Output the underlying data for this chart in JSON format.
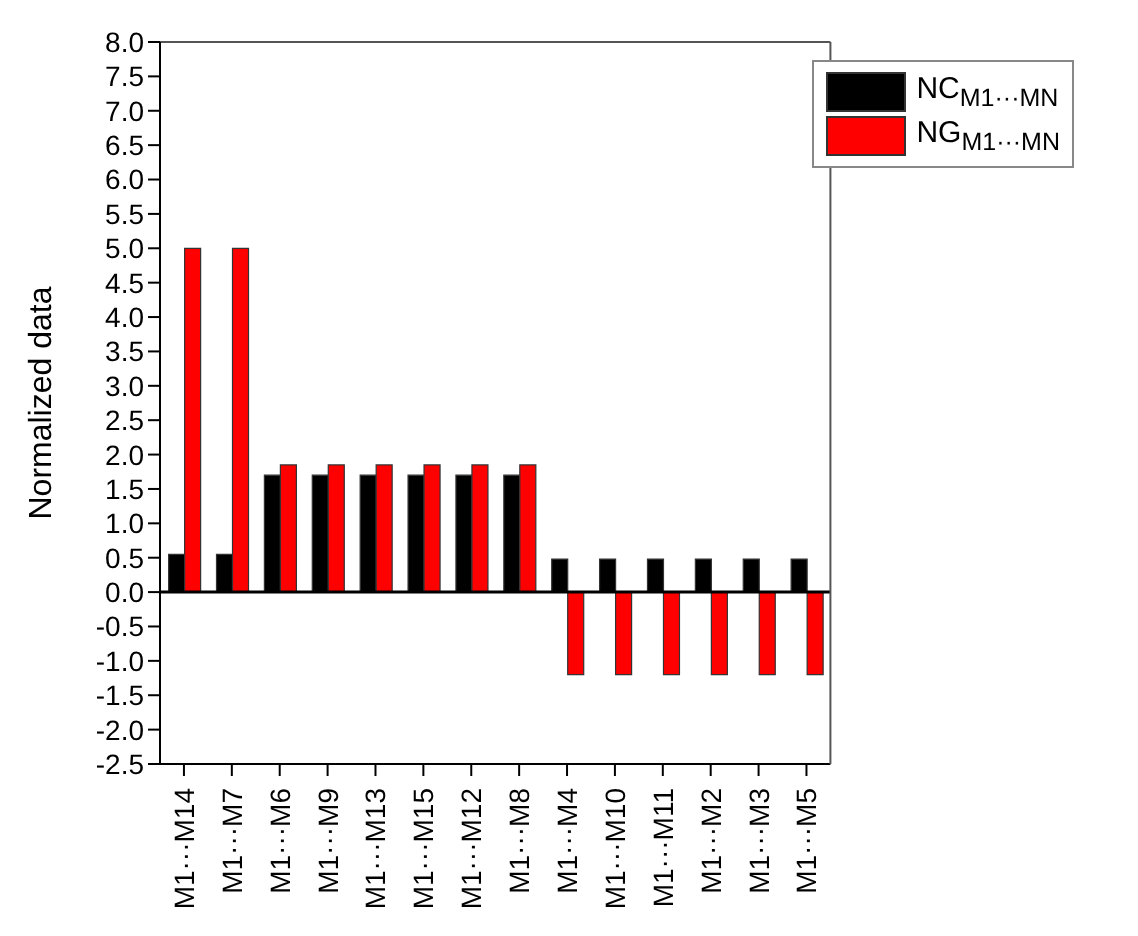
{
  "chart_data": {
    "type": "bar",
    "ylabel": "Normalized data",
    "categories": [
      "M1···M14",
      "M1···M7",
      "M1···M6",
      "M1···M9",
      "M1···M13",
      "M1···M15",
      "M1···M12",
      "M1···M8",
      "M1···M4",
      "M1···M10",
      "M1···M11",
      "M1···M2",
      "M1···M3",
      "M1···M5"
    ],
    "series": [
      {
        "name": "NC$_{M1···MN}$",
        "color": "#000000",
        "values": [
          0.55,
          0.55,
          1.7,
          1.7,
          1.7,
          1.7,
          1.7,
          1.7,
          0.48,
          0.48,
          0.48,
          0.48,
          0.48,
          0.48
        ]
      },
      {
        "name": "NG$_{M1···MN}$",
        "color": "#ff0000",
        "values": [
          5.0,
          5.0,
          1.85,
          1.85,
          1.85,
          1.85,
          1.85,
          1.85,
          -1.2,
          -1.2,
          -1.2,
          -1.2,
          -1.2,
          -1.2
        ]
      }
    ],
    "ylim": [
      -2.5,
      8.0
    ],
    "yticks": [
      {
        "value": -2.5,
        "label": "-2.5"
      },
      {
        "value": -2,
        "label": "-2.0"
      },
      {
        "value": -1.5,
        "label": "-1.5"
      },
      {
        "value": -1,
        "label": "-1.0"
      },
      {
        "value": -0.5,
        "label": "-0.5"
      },
      {
        "value": 0,
        "label": "0.0"
      },
      {
        "value": 0.5,
        "label": "0.5"
      },
      {
        "value": 1,
        "label": "1.0"
      },
      {
        "value": 1.5,
        "label": "1.5"
      },
      {
        "value": 2,
        "label": "2.0"
      },
      {
        "value": 2.5,
        "label": "2.5"
      },
      {
        "value": 3,
        "label": "3.0"
      },
      {
        "value": 3.5,
        "label": "3.5"
      },
      {
        "value": 4,
        "label": "4.0"
      },
      {
        "value": 4.5,
        "label": "4.5"
      },
      {
        "value": 5,
        "label": "5.0"
      },
      {
        "value": 5.5,
        "label": "5.5"
      },
      {
        "value": 6,
        "label": "6.0"
      },
      {
        "value": 6.5,
        "label": "6.5"
      },
      {
        "value": 7,
        "label": "7.0"
      },
      {
        "value": 7.5,
        "label": "7.5"
      },
      {
        "value": 8,
        "label": "8.0"
      }
    ],
    "ref_lines": [
      {
        "axis": "y",
        "value": 0,
        "color": "#000000"
      }
    ],
    "legend": "top right",
    "grid": false
  }
}
